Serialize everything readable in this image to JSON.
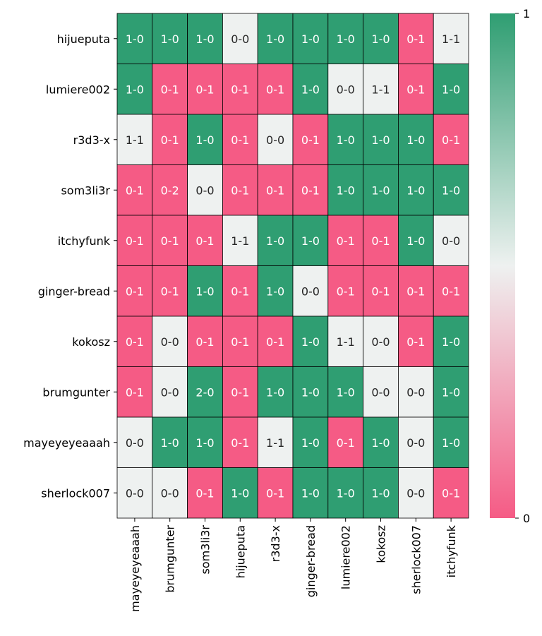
{
  "chart_data": {
    "type": "heatmap",
    "title": "",
    "xlabel": "",
    "ylabel": "",
    "rows": [
      "hijueputa",
      "lumiere002",
      "r3d3-x",
      "som3li3r",
      "itchyfunk",
      "ginger-bread",
      "kokosz",
      "brumgunter",
      "mayeyeyeaaah",
      "sherlock007"
    ],
    "cols": [
      "mayeyeyeaaah",
      "brumgunter",
      "som3li3r",
      "hijueputa",
      "r3d3-x",
      "ginger-bread",
      "lumiere002",
      "kokosz",
      "sherlock007",
      "itchyfunk"
    ],
    "annotations": [
      [
        "1-0",
        "1-0",
        "1-0",
        "0-0",
        "1-0",
        "1-0",
        "1-0",
        "1-0",
        "0-1",
        "1-1"
      ],
      [
        "1-0",
        "0-1",
        "0-1",
        "0-1",
        "0-1",
        "1-0",
        "0-0",
        "1-1",
        "0-1",
        "1-0"
      ],
      [
        "1-1",
        "0-1",
        "1-0",
        "0-1",
        "0-0",
        "0-1",
        "1-0",
        "1-0",
        "1-0",
        "0-1"
      ],
      [
        "0-1",
        "0-2",
        "0-0",
        "0-1",
        "0-1",
        "0-1",
        "1-0",
        "1-0",
        "1-0",
        "1-0"
      ],
      [
        "0-1",
        "0-1",
        "0-1",
        "1-1",
        "1-0",
        "1-0",
        "0-1",
        "0-1",
        "1-0",
        "0-0"
      ],
      [
        "0-1",
        "0-1",
        "1-0",
        "0-1",
        "1-0",
        "0-0",
        "0-1",
        "0-1",
        "0-1",
        "0-1"
      ],
      [
        "0-1",
        "0-0",
        "0-1",
        "0-1",
        "0-1",
        "1-0",
        "1-1",
        "0-0",
        "0-1",
        "1-0"
      ],
      [
        "0-1",
        "0-0",
        "2-0",
        "0-1",
        "1-0",
        "1-0",
        "1-0",
        "0-0",
        "0-0",
        "1-0"
      ],
      [
        "0-0",
        "1-0",
        "1-0",
        "0-1",
        "1-1",
        "1-0",
        "0-1",
        "1-0",
        "0-0",
        "1-0"
      ],
      [
        "0-0",
        "0-0",
        "0-1",
        "1-0",
        "0-1",
        "1-0",
        "1-0",
        "1-0",
        "0-0",
        "0-1"
      ]
    ],
    "values": [
      [
        1,
        1,
        1,
        0.5,
        1,
        1,
        1,
        1,
        0,
        0.5
      ],
      [
        1,
        0,
        0,
        0,
        0,
        1,
        0.5,
        0.5,
        0,
        1
      ],
      [
        0.5,
        0,
        1,
        0,
        0.5,
        0,
        1,
        1,
        1,
        0
      ],
      [
        0,
        0,
        0.5,
        0,
        0,
        0,
        1,
        1,
        1,
        1
      ],
      [
        0,
        0,
        0,
        0.5,
        1,
        1,
        0,
        0,
        1,
        0.5
      ],
      [
        0,
        0,
        1,
        0,
        1,
        0.5,
        0,
        0,
        0,
        0
      ],
      [
        0,
        0.5,
        0,
        0,
        0,
        1,
        0.5,
        0.5,
        0,
        1
      ],
      [
        0,
        0.5,
        1,
        0,
        1,
        1,
        1,
        0.5,
        0.5,
        1
      ],
      [
        0.5,
        1,
        1,
        0,
        0.5,
        1,
        0,
        1,
        0.5,
        1
      ],
      [
        0.5,
        0.5,
        0,
        1,
        0,
        1,
        1,
        1,
        0.5,
        0
      ]
    ],
    "colorbar": {
      "min": 0,
      "max": 1,
      "tick_labels": [
        "0",
        "1"
      ]
    },
    "colors": {
      "low": "#f55b85",
      "mid": "#eef1f0",
      "high": "#2f9e72"
    },
    "grid": true,
    "legend": "right"
  }
}
